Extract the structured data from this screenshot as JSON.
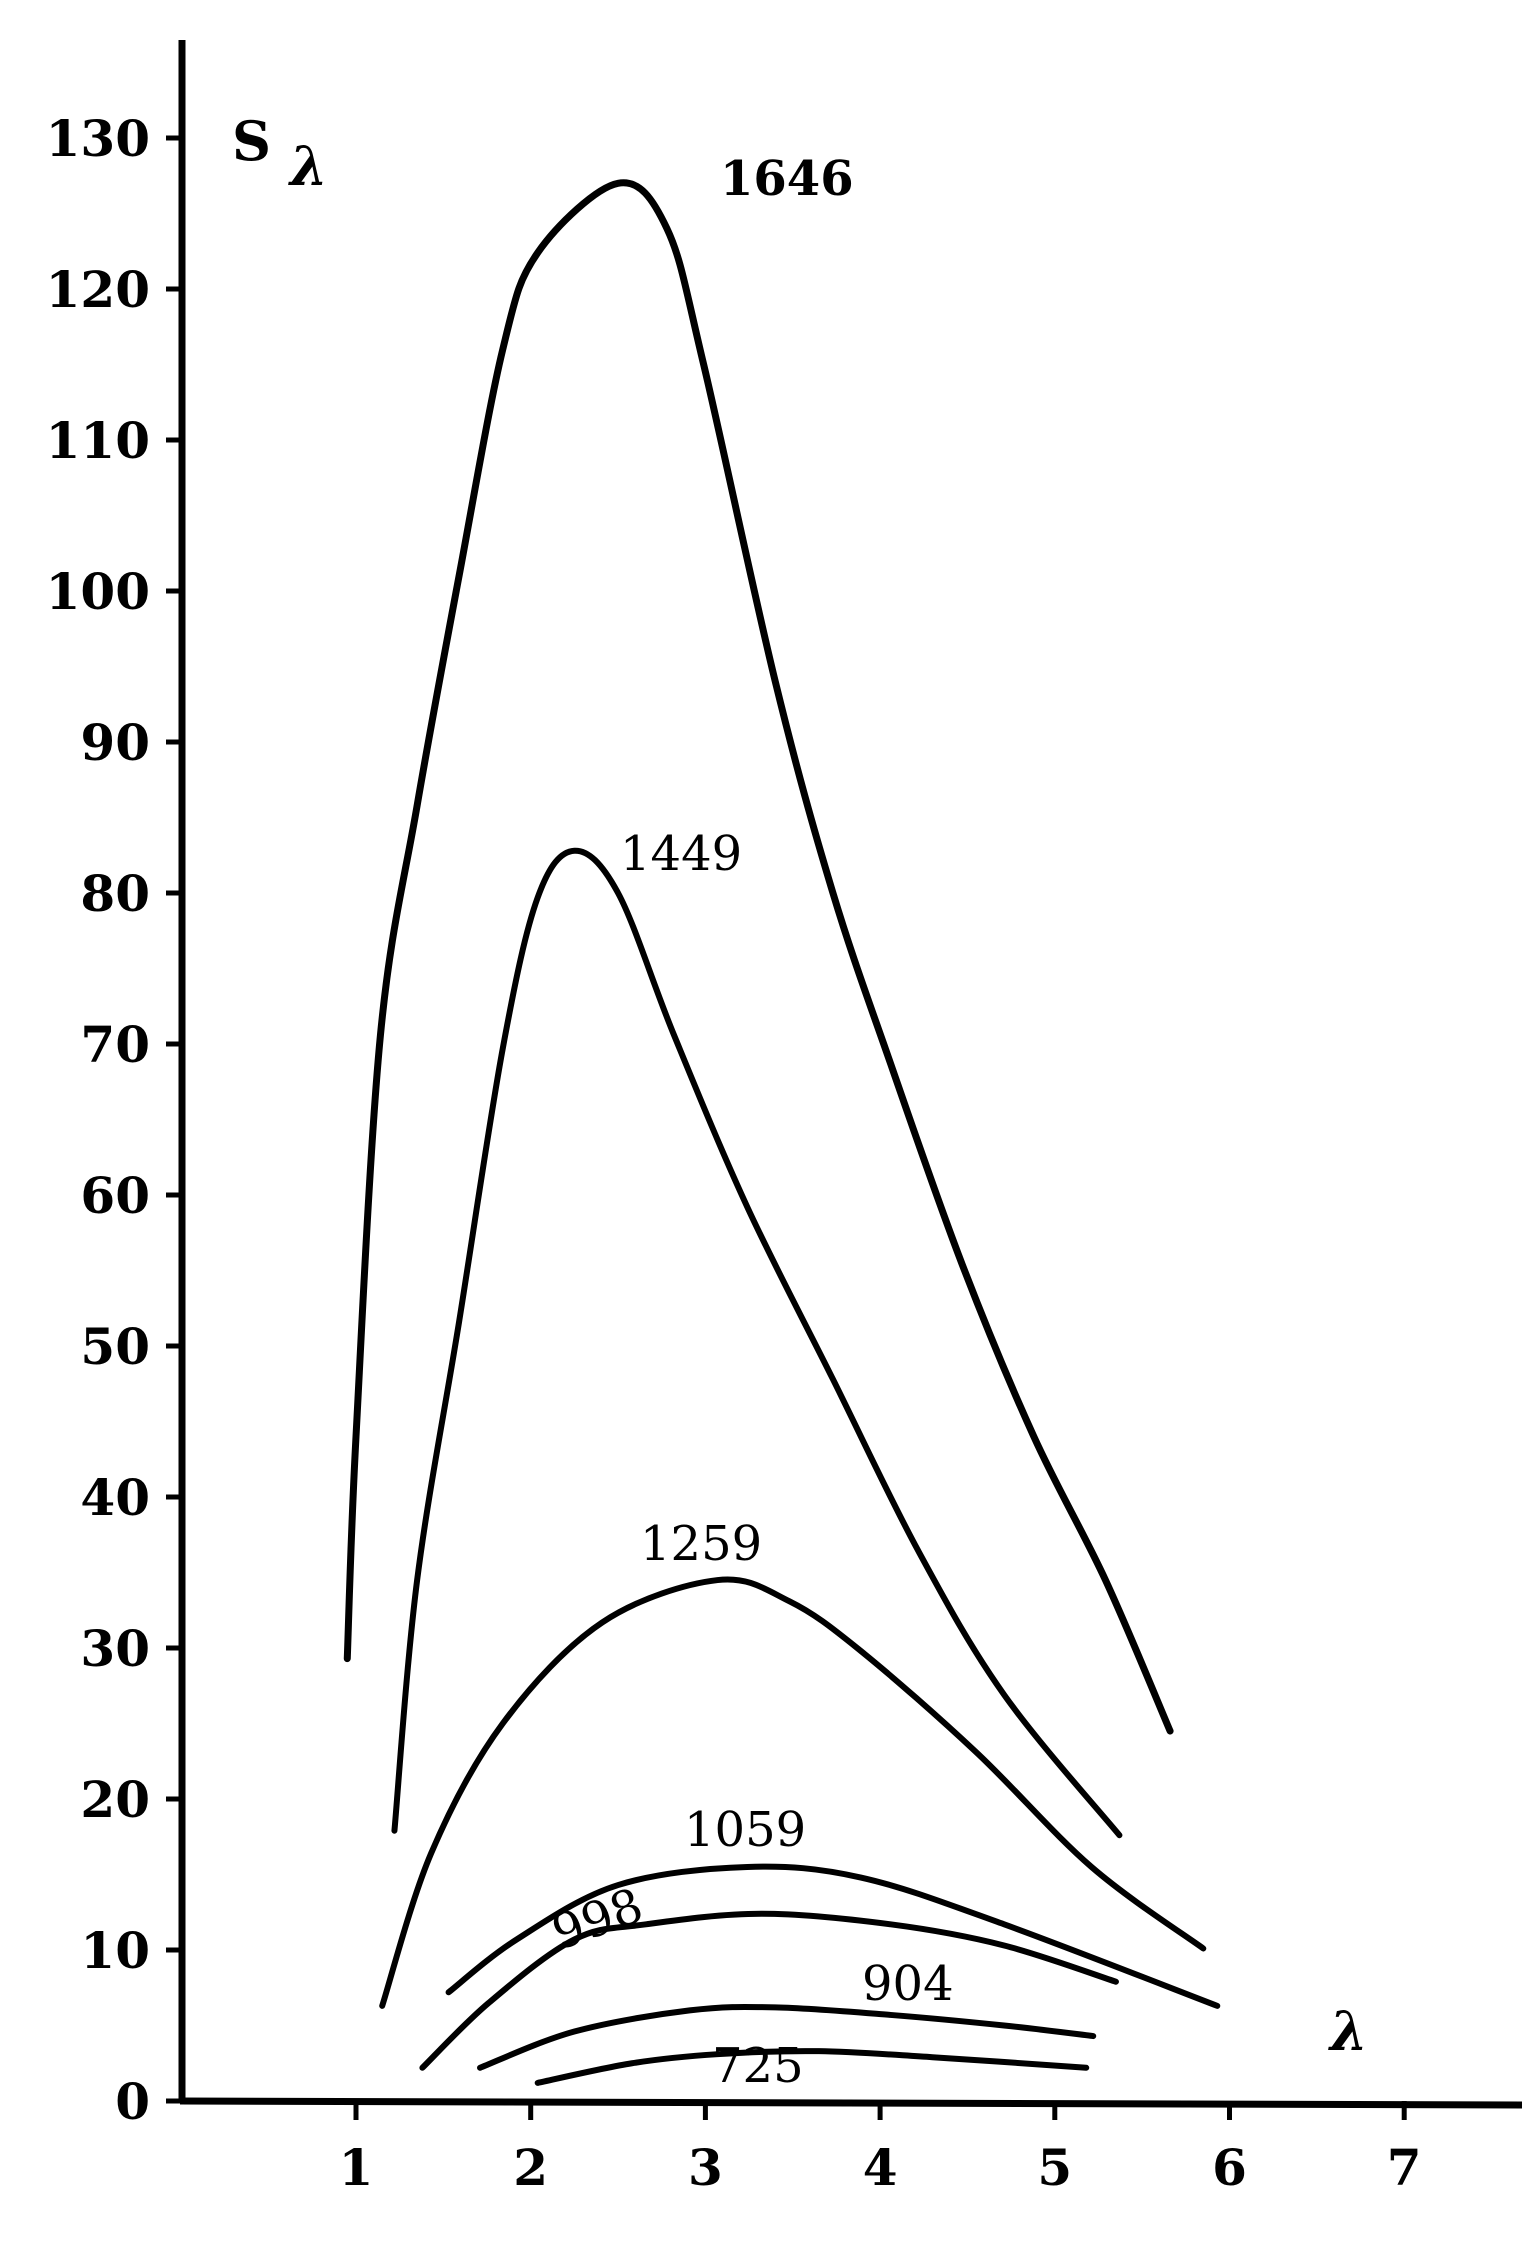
{
  "chart_data": {
    "type": "line",
    "title": "",
    "xlabel": "λ",
    "ylabel": "Sλ",
    "ylabel_main": "S",
    "ylabel_sub": "λ",
    "xlim": [
      0,
      7.5
    ],
    "ylim": [
      0,
      130
    ],
    "grid": false,
    "legend": "none (curves labeled inline)",
    "line_color": "#000000",
    "x_ticks": [
      "1",
      "2",
      "3",
      "4",
      "5",
      "6",
      "7"
    ],
    "y_ticks": [
      "0",
      "10",
      "20",
      "30",
      "40",
      "50",
      "60",
      "70",
      "80",
      "90",
      "100",
      "110",
      "120",
      "130"
    ],
    "series": [
      {
        "name": "1646",
        "points": [
          [
            0.95,
            29.3
          ],
          [
            1.0,
            44
          ],
          [
            1.14,
            70.6
          ],
          [
            1.35,
            85.8
          ],
          [
            1.59,
            101
          ],
          [
            1.84,
            116
          ],
          [
            2.04,
            122.4
          ],
          [
            2.5,
            127
          ],
          [
            2.78,
            124
          ],
          [
            2.99,
            115
          ],
          [
            3.4,
            94
          ],
          [
            3.73,
            80
          ],
          [
            4.06,
            68.7
          ],
          [
            4.47,
            55.4
          ],
          [
            4.88,
            44
          ],
          [
            5.29,
            34.5
          ],
          [
            5.66,
            24.5
          ]
        ]
      },
      {
        "name": "1449",
        "points": [
          [
            1.22,
            17.9
          ],
          [
            1.35,
            34.5
          ],
          [
            1.59,
            51.6
          ],
          [
            1.84,
            69.7
          ],
          [
            2.04,
            79.7
          ],
          [
            2.25,
            82.8
          ],
          [
            2.5,
            80
          ],
          [
            2.82,
            70.6
          ],
          [
            3.24,
            59.2
          ],
          [
            3.73,
            47.8
          ],
          [
            4.22,
            36.4
          ],
          [
            4.71,
            26.9
          ],
          [
            5.37,
            17.6
          ]
        ]
      },
      {
        "name": "1259",
        "points": [
          [
            1.15,
            6.3
          ],
          [
            1.43,
            16.4
          ],
          [
            1.84,
            25
          ],
          [
            2.41,
            31.7
          ],
          [
            3.07,
            34.5
          ],
          [
            3.48,
            33.1
          ],
          [
            3.89,
            29.8
          ],
          [
            4.55,
            23.1
          ],
          [
            5.21,
            15.5
          ],
          [
            5.85,
            10.1
          ]
        ]
      },
      {
        "name": "1059",
        "points": [
          [
            1.53,
            7.2
          ],
          [
            1.92,
            10.7
          ],
          [
            2.5,
            14.3
          ],
          [
            3.24,
            15.5
          ],
          [
            3.89,
            14.8
          ],
          [
            4.71,
            11.7
          ],
          [
            5.93,
            6.3
          ]
        ]
      },
      {
        "name": "998",
        "points": [
          [
            1.38,
            2.2
          ],
          [
            1.76,
            6.5
          ],
          [
            2.25,
            10.7
          ],
          [
            2.66,
            11.7
          ],
          [
            3.32,
            12.4
          ],
          [
            4.06,
            11.7
          ],
          [
            4.71,
            10.3
          ],
          [
            5.35,
            7.9
          ]
        ]
      },
      {
        "name": "904",
        "points": [
          [
            1.71,
            2.2
          ],
          [
            2.25,
            4.6
          ],
          [
            2.91,
            6.0
          ],
          [
            3.4,
            6.2
          ],
          [
            4.06,
            5.7
          ],
          [
            4.71,
            5.0
          ],
          [
            5.22,
            4.3
          ]
        ]
      },
      {
        "name": "725",
        "points": [
          [
            2.04,
            1.2
          ],
          [
            2.58,
            2.5
          ],
          [
            3.07,
            3.1
          ],
          [
            3.65,
            3.3
          ],
          [
            4.3,
            2.9
          ],
          [
            5.18,
            2.2
          ]
        ]
      }
    ]
  }
}
